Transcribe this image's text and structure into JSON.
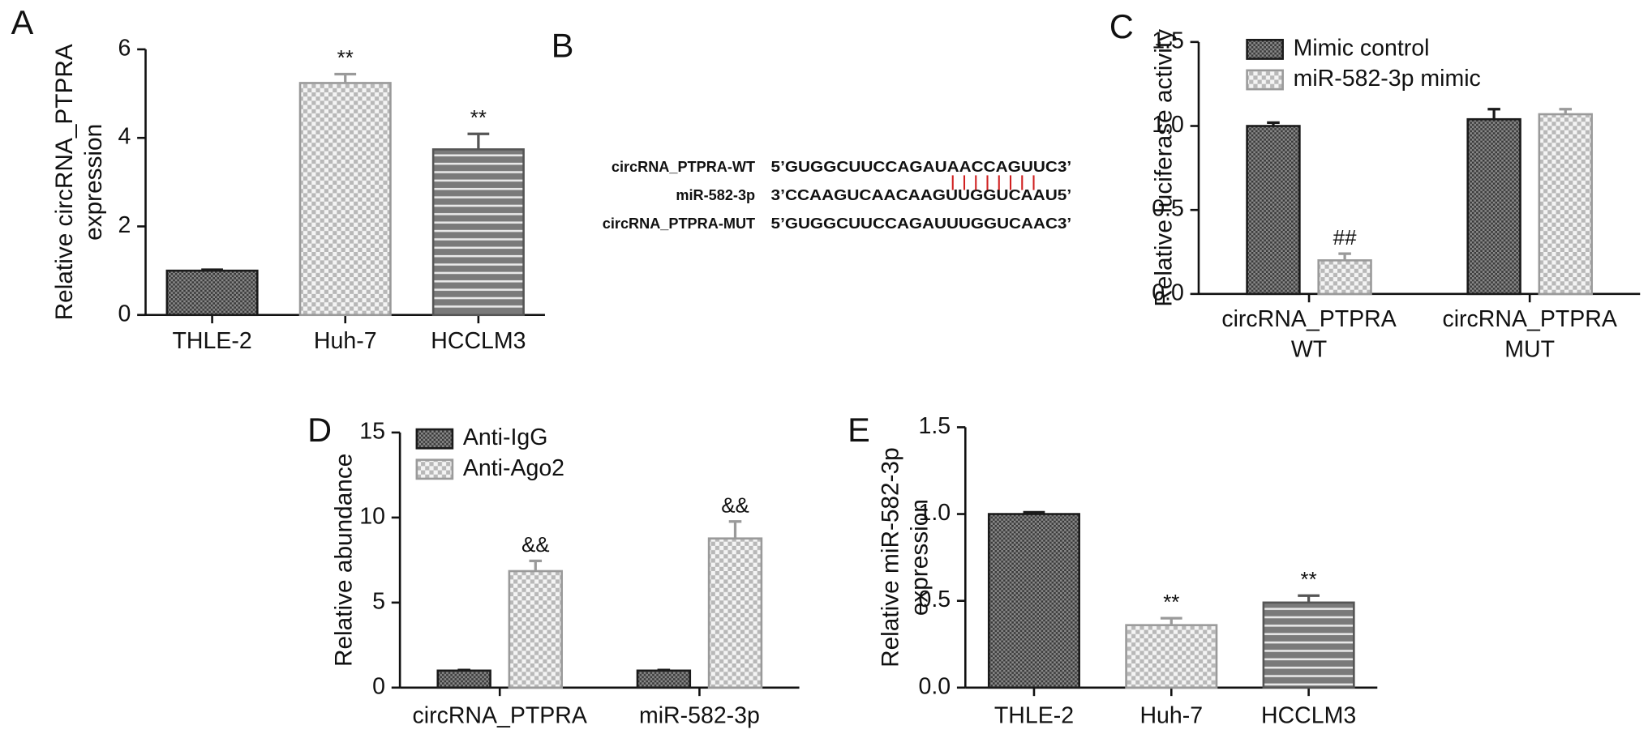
{
  "chart_data": [
    {
      "type": "bar",
      "panel": "A",
      "ylabel": [
        "Relative circRNA_PTPRA",
        "expression"
      ],
      "categories": [
        "THLE-2",
        "Huh-7",
        "HCCLM3"
      ],
      "values": [
        1.0,
        5.24,
        3.74
      ],
      "errors": [
        0.02,
        0.2,
        0.35
      ],
      "annotations": [
        null,
        "**",
        "**"
      ],
      "patterns": [
        "crosshatch",
        "checker",
        "stripes"
      ],
      "ylim": [
        0,
        6
      ],
      "yticks": [
        0,
        2,
        4,
        6
      ]
    },
    {
      "type": "bar",
      "panel": "C",
      "ylabel": [
        "Relative luciferase activity"
      ],
      "categories": [
        [
          "circRNA_PTPRA",
          "WT"
        ],
        [
          "circRNA_PTPRA",
          "MUT"
        ]
      ],
      "series": [
        {
          "name": "Mimic control",
          "pattern": "crosshatch",
          "values": [
            1.0,
            1.04
          ],
          "errors": [
            0.02,
            0.06
          ],
          "annotations": [
            null,
            null
          ]
        },
        {
          "name": "miR-582-3p mimic",
          "pattern": "checker",
          "values": [
            0.2,
            1.07
          ],
          "errors": [
            0.04,
            0.03
          ],
          "annotations": [
            "##",
            null
          ]
        }
      ],
      "ylim": [
        0,
        1.5
      ],
      "yticks": [
        {
          "value": 0,
          "label": "0.0"
        },
        0.5,
        {
          "value": 1,
          "label": "1.0"
        },
        1.5
      ],
      "legend": "upper left"
    },
    {
      "type": "bar",
      "panel": "D",
      "ylabel": [
        "Relative abundance"
      ],
      "categories": [
        "circRNA_PTPRA",
        "miR-582-3p"
      ],
      "series": [
        {
          "name": "Anti-IgG",
          "pattern": "crosshatch",
          "values": [
            1.0,
            1.0
          ],
          "errors": [
            0.03,
            0.03
          ],
          "annotations": [
            null,
            null
          ]
        },
        {
          "name": "Anti-Ago2",
          "pattern": "checker",
          "values": [
            6.85,
            8.77
          ],
          "errors": [
            0.6,
            1.0
          ],
          "annotations": [
            "&&",
            "&&"
          ]
        }
      ],
      "ylim": [
        0,
        15
      ],
      "yticks": [
        0,
        5,
        10,
        15
      ],
      "legend": "upper left"
    },
    {
      "type": "bar",
      "panel": "E",
      "ylabel": [
        "Relative miR-582-3p",
        "expression"
      ],
      "categories": [
        "THLE-2",
        "Huh-7",
        "HCCLM3"
      ],
      "values": [
        1.0,
        0.36,
        0.49
      ],
      "errors": [
        0.01,
        0.04,
        0.04
      ],
      "annotations": [
        null,
        "**",
        "**"
      ],
      "patterns": [
        "crosshatch",
        "checker",
        "stripes"
      ],
      "ylim": [
        0,
        1.5
      ],
      "yticks": [
        {
          "value": 0,
          "label": "0.0"
        },
        0.5,
        {
          "value": 1,
          "label": "1.0"
        },
        1.5
      ]
    }
  ],
  "panel_b": {
    "panel": "B",
    "rows": [
      {
        "label": "circRNA_PTPRA-WT",
        "sequence": "5’GUGGCUUCCAGAUAACCAGUUC3’"
      },
      {
        "label": "miR-582-3p",
        "sequence": "3’CCAAGUCAACAAGUUGGUCAAU5’"
      },
      {
        "label": "circRNA_PTPRA-MUT",
        "sequence": "5’GUGGCUUCCAGAUUUGGUCAAC3’"
      }
    ]
  }
}
